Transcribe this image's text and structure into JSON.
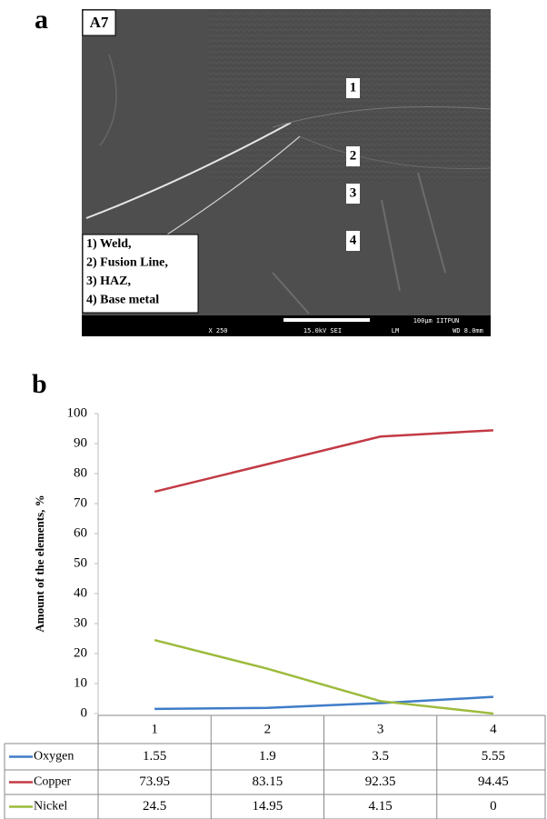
{
  "panel_a": {
    "label": "a",
    "image_label": "A7",
    "markers": [
      "1",
      "2",
      "3",
      "4"
    ],
    "legend": [
      "1) Weld,",
      "2) Fusion Line,",
      "3) HAZ,",
      "4) Base metal"
    ],
    "info_bar": [
      "X 250",
      "15.0kV SEI",
      "LM",
      "100µm  IITPUN",
      "WD 8.0mm"
    ]
  },
  "panel_b": {
    "label": "b"
  },
  "chart_data": {
    "type": "line",
    "y_label": "Amount of the elements, %",
    "categories": [
      "1",
      "2",
      "3",
      "4"
    ],
    "series": [
      {
        "name": "Oxygen",
        "color": "#3f7cc8",
        "values": [
          1.55,
          1.9,
          3.5,
          5.55
        ]
      },
      {
        "name": "Copper",
        "color": "#c23a44",
        "values": [
          73.95,
          83.15,
          92.35,
          94.45
        ]
      },
      {
        "name": "Nickel",
        "color": "#9cbb3c",
        "values": [
          24.5,
          14.95,
          4.15,
          0
        ]
      }
    ],
    "ylim": [
      0,
      100
    ],
    "yticks": [
      0,
      10,
      20,
      30,
      40,
      50,
      60,
      70,
      80,
      90,
      100
    ],
    "grid": false
  }
}
